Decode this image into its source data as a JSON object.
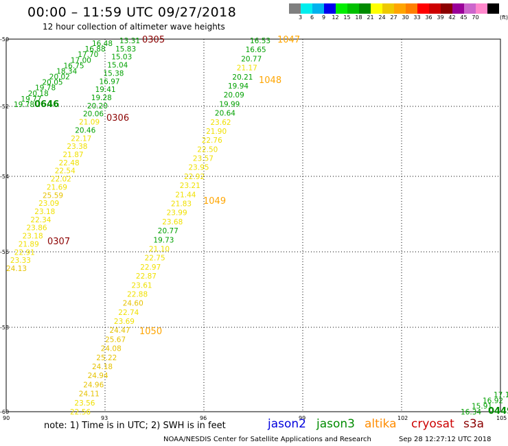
{
  "header": {
    "title": "00:00 – 11:59 UTC 09/27/2018",
    "subtitle": "12 hour collection of altimeter wave heights"
  },
  "colorbar": {
    "colors": [
      "#7f7f7f",
      "#00eeee",
      "#00b2ee",
      "#0000ee",
      "#00ee00",
      "#00c000",
      "#008b00",
      "#ffff00",
      "#eec900",
      "#ffa500",
      "#ff7f00",
      "#ff0000",
      "#cd0000",
      "#8b0000",
      "#9a0099",
      "#cc66cc",
      "#ff88cc",
      "#000000"
    ],
    "labels": [
      "3",
      "6",
      "9",
      "12",
      "15",
      "18",
      "21",
      "24",
      "27",
      "30",
      "33",
      "36",
      "39",
      "42",
      "45",
      "70"
    ],
    "unit": "(ft)"
  },
  "axes": {
    "lon_ticks": [
      "90",
      "93",
      "96",
      "99",
      "102",
      "105"
    ],
    "lat_ticks": [
      "-50",
      "-52",
      "-54",
      "-56",
      "-58",
      "-60"
    ]
  },
  "footer": {
    "note": "note: 1) Time is in UTC; 2) SWH is in feet",
    "satellites": [
      {
        "name": "jason2",
        "color": "#0000dd"
      },
      {
        "name": "jason3",
        "color": "#008b00"
      },
      {
        "name": "altika",
        "color": "#ff8c00"
      },
      {
        "name": "cryosat",
        "color": "#cc0000"
      },
      {
        "name": "s3a",
        "color": "#8b0000"
      }
    ],
    "credit": "NOAA/NESDIS Center for Satellite Applications and Research",
    "timestamp": "Sep 28 12:27:12 UTC 2018"
  },
  "track_labels": [
    {
      "text": "0305",
      "color": "#8b0000"
    },
    {
      "text": "0646",
      "color": "#008b00"
    },
    {
      "text": "0306",
      "color": "#8b0000"
    },
    {
      "text": "0307",
      "color": "#8b0000"
    },
    {
      "text": "1047",
      "color": "#ffa500"
    },
    {
      "text": "1048",
      "color": "#ffa500"
    },
    {
      "text": "1049",
      "color": "#ffa500"
    },
    {
      "text": "1050",
      "color": "#ffa500"
    },
    {
      "text": "0449",
      "color": "#008b00"
    }
  ],
  "tracks": [
    {
      "values": [
        "16.48",
        "16.88",
        "17.70",
        "17.00",
        "16.75",
        "18.34",
        "20.02",
        "20.05",
        "19.78",
        "20.18",
        "19.77",
        "19.78"
      ]
    },
    {
      "values": [
        "13.31",
        "15.83",
        "15.03",
        "15.04",
        "15.38",
        "16.97",
        "19.41",
        "19.28",
        "20.20",
        "20.06",
        "21.09",
        "20.46",
        "22.17",
        "23.38",
        "21.87",
        "22.48",
        "22.54",
        "22.02",
        "21.69",
        "25.59",
        "23.09",
        "23.18",
        "22.34",
        "23.86",
        "23.18",
        "21.89",
        "22.91",
        "23.33",
        "24.13"
      ]
    },
    {
      "values": [
        "16.53",
        "16.65",
        "20.77",
        "21.17",
        "20.21",
        "19.94",
        "20.09",
        "19.99",
        "20.64",
        "23.62",
        "21.90",
        "22.76",
        "22.50",
        "23.57",
        "23.95",
        "22.92",
        "23.21",
        "21.44",
        "21.83",
        "23.99",
        "23.68",
        "20.77",
        "19.73",
        "21.10",
        "22.75",
        "22.97",
        "22.87",
        "23.61",
        "22.88",
        "24.60",
        "22.74",
        "23.69",
        "24.47",
        "25.67",
        "24.08",
        "25.22",
        "24.18",
        "24.94",
        "24.96",
        "24.11",
        "23.56",
        "22.56"
      ]
    },
    {
      "values": [
        "17.1",
        "16.92",
        "15.91",
        "16.34"
      ]
    }
  ]
}
